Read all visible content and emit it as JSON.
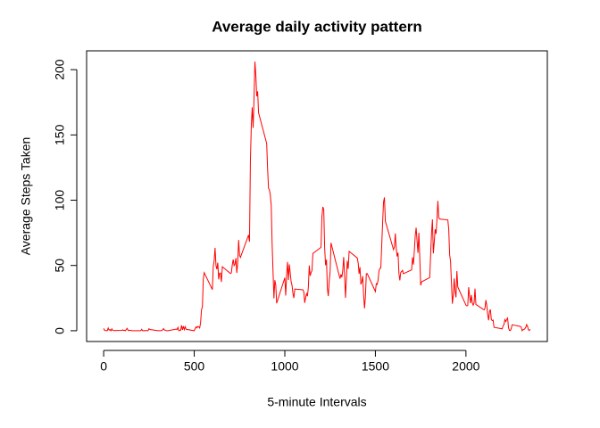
{
  "chart_data": {
    "type": "line",
    "title": "Average daily activity pattern",
    "xlabel": "5-minute Intervals",
    "ylabel": "Average Steps Taken",
    "color": "#ff0000",
    "x": [
      0,
      5,
      10,
      15,
      20,
      25,
      30,
      35,
      40,
      45,
      50,
      55,
      100,
      105,
      110,
      115,
      120,
      125,
      130,
      135,
      140,
      145,
      150,
      155,
      200,
      205,
      210,
      215,
      220,
      225,
      230,
      235,
      240,
      245,
      250,
      255,
      300,
      305,
      310,
      315,
      320,
      325,
      330,
      335,
      340,
      345,
      350,
      355,
      400,
      405,
      410,
      415,
      420,
      425,
      430,
      435,
      440,
      445,
      450,
      455,
      500,
      505,
      510,
      515,
      520,
      525,
      530,
      535,
      540,
      545,
      550,
      555,
      600,
      605,
      610,
      615,
      620,
      625,
      630,
      635,
      640,
      645,
      650,
      655,
      700,
      705,
      710,
      715,
      720,
      725,
      730,
      735,
      740,
      745,
      750,
      755,
      800,
      805,
      810,
      815,
      820,
      825,
      830,
      835,
      840,
      845,
      850,
      855,
      900,
      905,
      910,
      915,
      920,
      925,
      930,
      935,
      940,
      945,
      950,
      955,
      1000,
      1005,
      1010,
      1015,
      1020,
      1025,
      1030,
      1035,
      1040,
      1045,
      1050,
      1055,
      1100,
      1105,
      1110,
      1115,
      1120,
      1125,
      1130,
      1135,
      1140,
      1145,
      1150,
      1155,
      1200,
      1205,
      1210,
      1215,
      1220,
      1225,
      1230,
      1235,
      1240,
      1245,
      1250,
      1255,
      1300,
      1305,
      1310,
      1315,
      1320,
      1325,
      1330,
      1335,
      1340,
      1345,
      1350,
      1355,
      1400,
      1405,
      1410,
      1415,
      1420,
      1425,
      1430,
      1435,
      1440,
      1445,
      1450,
      1455,
      1500,
      1505,
      1510,
      1515,
      1520,
      1525,
      1530,
      1535,
      1540,
      1545,
      1550,
      1555,
      1600,
      1605,
      1610,
      1615,
      1620,
      1625,
      1630,
      1635,
      1640,
      1645,
      1650,
      1655,
      1700,
      1705,
      1710,
      1715,
      1720,
      1725,
      1730,
      1735,
      1740,
      1745,
      1750,
      1755,
      1800,
      1805,
      1810,
      1815,
      1820,
      1825,
      1830,
      1835,
      1840,
      1845,
      1850,
      1855,
      1900,
      1905,
      1910,
      1915,
      1920,
      1925,
      1930,
      1935,
      1940,
      1945,
      1950,
      1955,
      2000,
      2005,
      2010,
      2015,
      2020,
      2025,
      2030,
      2035,
      2040,
      2045,
      2050,
      2055,
      2100,
      2105,
      2110,
      2115,
      2120,
      2125,
      2130,
      2135,
      2140,
      2145,
      2150,
      2155,
      2200,
      2205,
      2210,
      2215,
      2220,
      2225,
      2230,
      2235,
      2240,
      2245,
      2250,
      2255,
      2300,
      2305,
      2310,
      2315,
      2320,
      2325,
      2330,
      2335,
      2340,
      2345,
      2350,
      2355
    ],
    "values": [
      1.72,
      0.34,
      0.13,
      0.15,
      0.08,
      2.09,
      0.53,
      0.87,
      0,
      1.47,
      0.3,
      0.13,
      0.32,
      0.68,
      0.15,
      0.34,
      0,
      1.11,
      1.83,
      0.17,
      0.17,
      0.38,
      0.26,
      0,
      0,
      0,
      1.13,
      0,
      0,
      0.13,
      0,
      0.23,
      0,
      0,
      1.55,
      0.94,
      0,
      0,
      0,
      0,
      0.21,
      0.62,
      1.62,
      0.58,
      0.49,
      0.08,
      0,
      0,
      1.19,
      0.94,
      2.57,
      0,
      0.34,
      0.36,
      4.11,
      0.66,
      3.49,
      0.83,
      3.11,
      1.11,
      0,
      1.57,
      3,
      2.25,
      3.32,
      2.96,
      2.09,
      6.06,
      16.02,
      18.34,
      39.45,
      44.49,
      31.49,
      49.26,
      53.77,
      63.45,
      49.96,
      47.08,
      52.15,
      39.34,
      44.02,
      44.17,
      37.36,
      49.04,
      43.81,
      44.38,
      50.51,
      54.51,
      49.92,
      50.98,
      55.68,
      44.32,
      52.26,
      69.55,
      57.85,
      56.15,
      73.38,
      68.21,
      129.43,
      157.53,
      171.15,
      155.4,
      177.3,
      206.17,
      195.92,
      179.57,
      183.4,
      167.02,
      143.45,
      124.04,
      109.11,
      108.11,
      103.72,
      95.97,
      66.21,
      45.23,
      24.79,
      38.75,
      34.98,
      21.06,
      40.57,
      26.98,
      42.42,
      52.66,
      38.92,
      50.79,
      44.28,
      37.42,
      34.7,
      28.34,
      25.09,
      31.94,
      31.36,
      29.68,
      21.32,
      25.55,
      28.38,
      26.47,
      33.43,
      49.98,
      42.04,
      44.6,
      46.04,
      59.19,
      63.87,
      87.7,
      94.85,
      92.77,
      63.4,
      50.17,
      54.47,
      32.42,
      26.53,
      37.74,
      45.06,
      67.28,
      42.34,
      39.89,
      43.26,
      40.98,
      46.25,
      56.43,
      42.75,
      25.13,
      39.97,
      53.55,
      47.32,
      60.81,
      55.75,
      51.96,
      43.58,
      48.7,
      35.47,
      37.55,
      41.85,
      27.51,
      17.11,
      26.08,
      43.62,
      43.77,
      30.02,
      36.08,
      35.49,
      38.85,
      45.96,
      47.75,
      48.13,
      65.32,
      82.91,
      98.66,
      102.11,
      83.96,
      62.13,
      64.13,
      74.55,
      63.17,
      56.91,
      59.77,
      43.87,
      38.57,
      44.66,
      45.45,
      46.21,
      43.68,
      46.62,
      56.3,
      50.72,
      61.23,
      72.72,
      78.94,
      68.94,
      59.66,
      75.09,
      56.51,
      34.77,
      37.45,
      40.68,
      58.02,
      74.7,
      85.32,
      59.26,
      67.77,
      77.7,
      74.25,
      85.34,
      99.45,
      86.58,
      85.6,
      84.87,
      77.83,
      58.04,
      53.36,
      36.32,
      20.72,
      27.4,
      40.02,
      30.21,
      25.55,
      45.66,
      33.53,
      19.62,
      19.02,
      19.34,
      33.34,
      26.81,
      21.17,
      27.3,
      21.34,
      19.55,
      21.32,
      32.3,
      20.15,
      15.94,
      17.23,
      23.45,
      19.25,
      12.45,
      8.02,
      14.66,
      16.3,
      8.68,
      7.79,
      8.13,
      2.62,
      1.45,
      3.68,
      4.81,
      8.51,
      7.08,
      8.7,
      9.75,
      2.21,
      0.32,
      0.11,
      1.6,
      4.6,
      3.3,
      2.85,
      0,
      0.83,
      0.96,
      1.58,
      2.6,
      4.7,
      3.3,
      0.64,
      0.23,
      1.08
    ],
    "xlim": [
      -94.2,
      2449.2
    ],
    "xticks": [
      0,
      500,
      1000,
      1500,
      2000
    ],
    "ylim": [
      -8.25,
      214.42
    ],
    "yticks": [
      0,
      50,
      100,
      150,
      200
    ]
  }
}
